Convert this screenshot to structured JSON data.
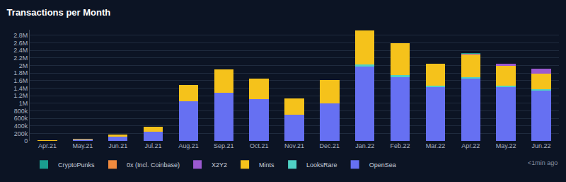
{
  "chart_data": {
    "type": "bar",
    "title": "Transactions per Month",
    "stacked": true,
    "grid": true,
    "legend": "bottom-left",
    "annotations": [
      "<1min ago"
    ],
    "categories": [
      "Apr.21",
      "May.21",
      "Jun.21",
      "Jul.21",
      "Aug.21",
      "Sep.21",
      "Oct.21",
      "Nov.21",
      "Dec.21",
      "Jan.22",
      "Feb.22",
      "Mar.22",
      "Apr.22",
      "May.22",
      "Jun.22"
    ],
    "series": [
      {
        "name": "OpenSea",
        "color": "#6670f2",
        "values": [
          8000,
          30000,
          110000,
          250000,
          1050000,
          1270000,
          1100000,
          700000,
          1000000,
          1980000,
          1700000,
          1420000,
          1660000,
          1430000,
          1330000
        ]
      },
      {
        "name": "LooksRare",
        "color": "#4fd1c5",
        "values": [
          0,
          0,
          0,
          0,
          0,
          0,
          0,
          0,
          0,
          40000,
          40000,
          40000,
          40000,
          40000,
          40000
        ]
      },
      {
        "name": "Mints",
        "color": "#f5c21b",
        "values": [
          2000,
          20000,
          60000,
          130000,
          430000,
          630000,
          550000,
          430000,
          620000,
          910000,
          860000,
          590000,
          590000,
          520000,
          420000
        ]
      },
      {
        "name": "X2Y2",
        "color": "#9b59d0",
        "values": [
          0,
          0,
          0,
          0,
          0,
          0,
          0,
          0,
          0,
          0,
          0,
          0,
          30000,
          60000,
          130000
        ]
      },
      {
        "name": "0x (Incl. Coinbase)",
        "color": "#f08a3e",
        "values": [
          0,
          0,
          0,
          0,
          0,
          0,
          0,
          0,
          0,
          0,
          0,
          0,
          0,
          2000,
          2000
        ]
      },
      {
        "name": "CryptoPunks",
        "color": "#1a9e8f",
        "values": [
          1000,
          1000,
          1000,
          1000,
          1000,
          1000,
          1000,
          1000,
          1000,
          1000,
          1000,
          1000,
          1000,
          1000,
          1000
        ]
      }
    ],
    "ylim": [
      0,
      2950000
    ],
    "yticks": [
      0,
      {
        "value": 200000,
        "label": "200k"
      },
      {
        "value": 400000,
        "label": "400k"
      },
      {
        "value": 600000,
        "label": "600k"
      },
      {
        "value": 800000,
        "label": "800k"
      },
      {
        "value": 1000000,
        "label": "1M"
      },
      {
        "value": 1200000,
        "label": "1.2M"
      },
      {
        "value": 1400000,
        "label": "1.4M"
      },
      {
        "value": 1600000,
        "label": "1.6M"
      },
      {
        "value": 1800000,
        "label": "1.8M"
      },
      {
        "value": 2000000,
        "label": "2M"
      },
      {
        "value": 2200000,
        "label": "2.2M"
      },
      {
        "value": 2400000,
        "label": "2.4M"
      },
      {
        "value": 2600000,
        "label": "2.6M"
      },
      {
        "value": 2800000,
        "label": "2.8M"
      }
    ]
  }
}
